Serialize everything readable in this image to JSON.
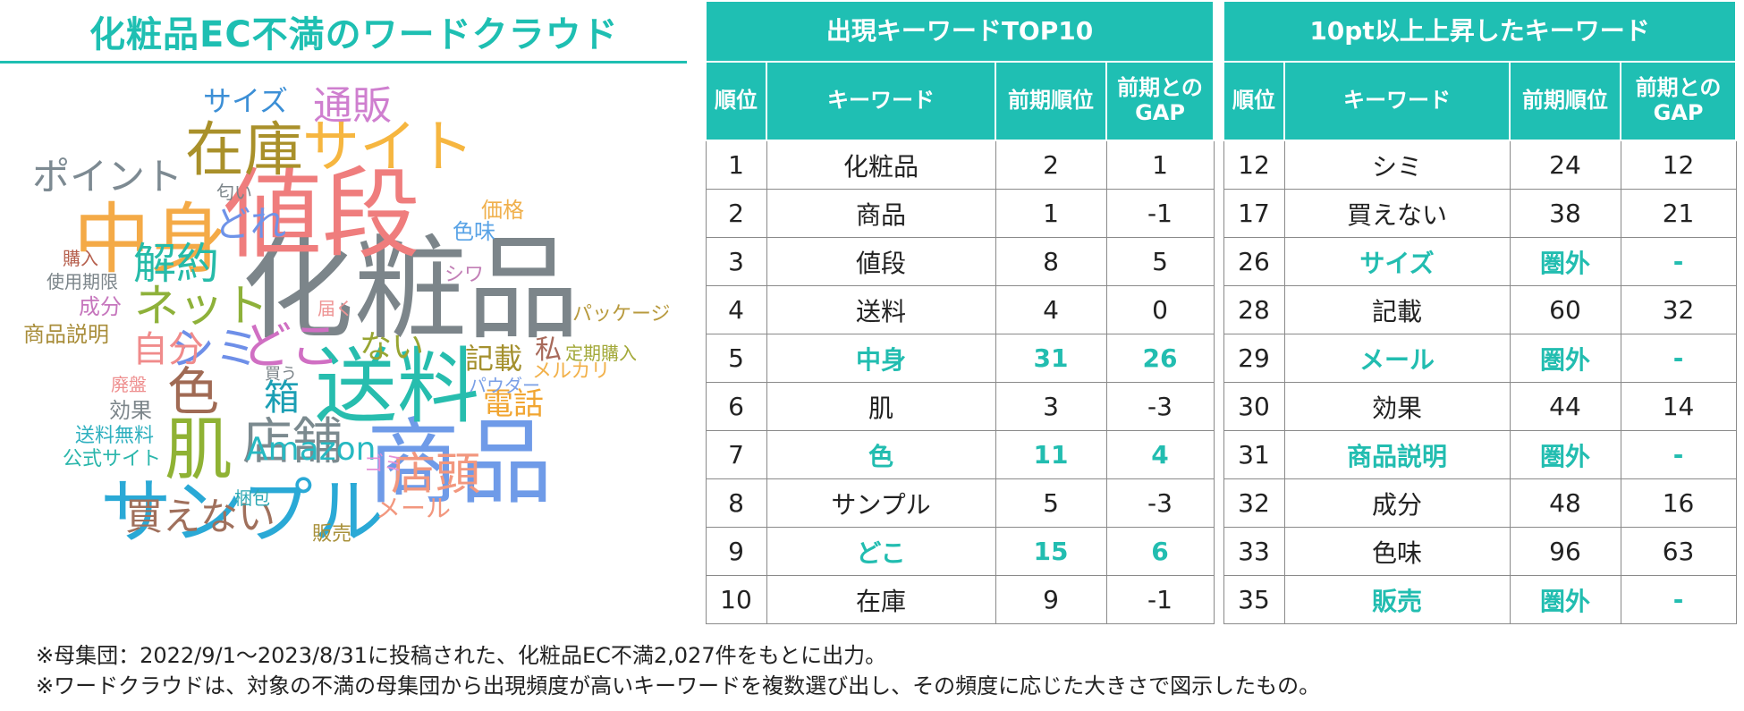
{
  "cloud_title": "化粧品EC不満のワードクラウド",
  "cloud_words": [
    {
      "text": "化粧品",
      "color": "#7c858a"
    },
    {
      "text": "値段",
      "color": "#ef7d7d"
    },
    {
      "text": "商品",
      "color": "#6f9be8"
    },
    {
      "text": "送料",
      "color": "#27bdae"
    },
    {
      "text": "中身",
      "color": "#f4aa47"
    },
    {
      "text": "サンプル",
      "color": "#2aa9d6"
    },
    {
      "text": "在庫",
      "color": "#a9902a"
    },
    {
      "text": "サイト",
      "color": "#f6b640"
    },
    {
      "text": "肌",
      "color": "#8fb234"
    },
    {
      "text": "色",
      "color": "#a06a54"
    },
    {
      "text": "店舗",
      "color": "#7b8a8f"
    },
    {
      "text": "どこ",
      "color": "#d06fc3"
    },
    {
      "text": "シミ",
      "color": "#6e8fe8"
    },
    {
      "text": "ネット",
      "color": "#8eb13a"
    },
    {
      "text": "解約",
      "color": "#26bba9"
    },
    {
      "text": "通販",
      "color": "#cf7fcf"
    },
    {
      "text": "ポイント",
      "color": "#7d8a92"
    },
    {
      "text": "店頭",
      "color": "#f2977e"
    },
    {
      "text": "買えない",
      "color": "#a0705c"
    },
    {
      "text": "Amazon",
      "color": "#27b9c2"
    },
    {
      "text": "自分",
      "color": "#f08b8b"
    },
    {
      "text": "箱",
      "color": "#1c9fb4"
    },
    {
      "text": "サイズ",
      "color": "#3c8fd6"
    },
    {
      "text": "ない",
      "color": "#98a532"
    },
    {
      "text": "どれ",
      "color": "#6f93e8"
    },
    {
      "text": "電話",
      "color": "#f1a531"
    },
    {
      "text": "記載",
      "color": "#a4902e"
    },
    {
      "text": "私",
      "color": "#a86a5b"
    },
    {
      "text": "メール",
      "color": "#f2977e"
    },
    {
      "text": "価格",
      "color": "#f0b04c"
    },
    {
      "text": "色味",
      "color": "#59a3e6"
    },
    {
      "text": "シワ",
      "color": "#c27fb6"
    },
    {
      "text": "パッケージ",
      "color": "#b89a3e"
    },
    {
      "text": "定期購入",
      "color": "#a3a93a"
    },
    {
      "text": "メルカリ",
      "color": "#f2b14a"
    },
    {
      "text": "パウダー",
      "color": "#7a9fe6"
    },
    {
      "text": "商品説明",
      "color": "#a88d3a"
    },
    {
      "text": "使用期限",
      "color": "#7c858a"
    },
    {
      "text": "成分",
      "color": "#c676bd"
    },
    {
      "text": "購入",
      "color": "#b6604e"
    },
    {
      "text": "匂い",
      "color": "#7c858a"
    },
    {
      "text": "届く",
      "color": "#ee9494"
    },
    {
      "text": "買う",
      "color": "#7c858a"
    },
    {
      "text": "廃盤",
      "color": "#ee8f8f"
    },
    {
      "text": "効果",
      "color": "#7c858a"
    },
    {
      "text": "送料無料",
      "color": "#2fb0bf"
    },
    {
      "text": "公式サイト",
      "color": "#2ab6ab"
    },
    {
      "text": "ゴミ",
      "color": "#e48fd6"
    },
    {
      "text": "梱包",
      "color": "#2aa7b3"
    },
    {
      "text": "販売",
      "color": "#a8903a"
    }
  ],
  "top10": {
    "title": "出現キーワードTOP10",
    "headers": [
      "順位",
      "キーワード",
      "前期順位",
      "前期との\nGAP"
    ],
    "rows": [
      {
        "rank": "1",
        "keyword": "化粧品",
        "prev": "2",
        "gap": "1",
        "hl": false
      },
      {
        "rank": "2",
        "keyword": "商品",
        "prev": "1",
        "gap": "-1",
        "hl": false
      },
      {
        "rank": "3",
        "keyword": "値段",
        "prev": "8",
        "gap": "5",
        "hl": false
      },
      {
        "rank": "4",
        "keyword": "送料",
        "prev": "4",
        "gap": "0",
        "hl": false
      },
      {
        "rank": "5",
        "keyword": "中身",
        "prev": "31",
        "gap": "26",
        "hl": true
      },
      {
        "rank": "6",
        "keyword": "肌",
        "prev": "3",
        "gap": "-3",
        "hl": false
      },
      {
        "rank": "7",
        "keyword": "色",
        "prev": "11",
        "gap": "4",
        "hl": true
      },
      {
        "rank": "8",
        "keyword": "サンプル",
        "prev": "5",
        "gap": "-3",
        "hl": false
      },
      {
        "rank": "9",
        "keyword": "どこ",
        "prev": "15",
        "gap": "6",
        "hl": true
      },
      {
        "rank": "10",
        "keyword": "在庫",
        "prev": "9",
        "gap": "-1",
        "hl": false
      }
    ]
  },
  "rising": {
    "title": "10pt以上上昇したキーワード",
    "headers": [
      "順位",
      "キーワード",
      "前期順位",
      "前期との\nGAP"
    ],
    "rows": [
      {
        "rank": "12",
        "keyword": "シミ",
        "prev": "24",
        "gap": "12",
        "hl": false
      },
      {
        "rank": "17",
        "keyword": "買えない",
        "prev": "38",
        "gap": "21",
        "hl": false
      },
      {
        "rank": "26",
        "keyword": "サイズ",
        "prev": "圏外",
        "gap": "-",
        "hl": true
      },
      {
        "rank": "28",
        "keyword": "記載",
        "prev": "60",
        "gap": "32",
        "hl": false
      },
      {
        "rank": "29",
        "keyword": "メール",
        "prev": "圏外",
        "gap": "-",
        "hl": true
      },
      {
        "rank": "30",
        "keyword": "効果",
        "prev": "44",
        "gap": "14",
        "hl": false
      },
      {
        "rank": "31",
        "keyword": "商品説明",
        "prev": "圏外",
        "gap": "-",
        "hl": true
      },
      {
        "rank": "32",
        "keyword": "成分",
        "prev": "48",
        "gap": "16",
        "hl": false
      },
      {
        "rank": "33",
        "keyword": "色味",
        "prev": "96",
        "gap": "63",
        "hl": false
      },
      {
        "rank": "35",
        "keyword": "販売",
        "prev": "圏外",
        "gap": "-",
        "hl": true
      }
    ]
  },
  "notes": [
    "※母集団：2022/9/1～2023/8/31に投稿された、化粧品EC不満2,027件をもとに出力。",
    "※ワードクラウドは、対象の不満の母集団から出現頻度が高いキーワードを複数選び出し、その頻度に応じた大きさで図示したもの。"
  ]
}
